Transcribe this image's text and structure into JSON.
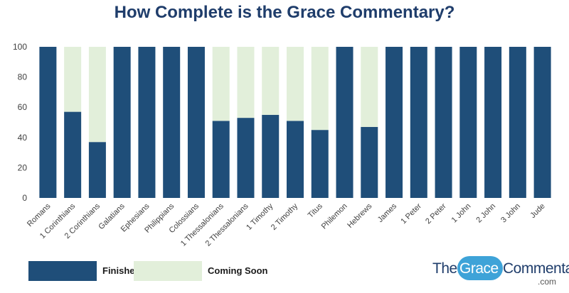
{
  "chart_data": {
    "type": "bar",
    "stacked": true,
    "title": "How Complete is the Grace Commentary?",
    "categories": [
      "Romans",
      "1 Corinthians",
      "2 Corinthians",
      "Galatians",
      "Ephesians",
      "Philippians",
      "Colossians",
      "1 Thessalonians",
      "2 Thessalonians",
      "1 Timothy",
      "2 Timothy",
      "Titus",
      "Philemon",
      "Hebrews",
      "James",
      "1 Peter",
      "2 Peter",
      "1 John",
      "2 John",
      "3 John",
      "Jude"
    ],
    "series": [
      {
        "name": "Finished",
        "color": "#1f4e79",
        "values": [
          100,
          57,
          37,
          100,
          100,
          100,
          100,
          51,
          53,
          55,
          51,
          45,
          100,
          47,
          100,
          100,
          100,
          100,
          100,
          100,
          100
        ]
      },
      {
        "name": "Coming Soon",
        "color": "#e2efda",
        "values": [
          0,
          43,
          63,
          0,
          0,
          0,
          0,
          49,
          47,
          45,
          49,
          55,
          0,
          53,
          0,
          0,
          0,
          0,
          0,
          0,
          0
        ]
      }
    ],
    "ylim": [
      0,
      100
    ],
    "yticks": [
      0,
      20,
      40,
      60,
      80,
      100
    ],
    "grid": false,
    "legend": "bottom-left"
  },
  "logo": {
    "the": "The",
    "grace": "Grace",
    "commentary": "Commentary",
    "dotcom": ".com"
  }
}
